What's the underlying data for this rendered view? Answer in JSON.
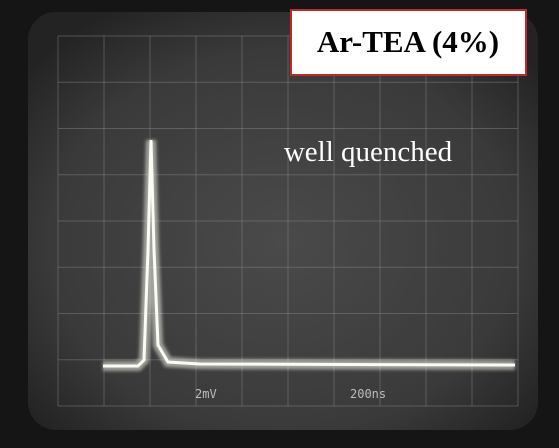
{
  "annotation": {
    "title": "Ar-TEA (4%)",
    "note": "well quenched"
  },
  "scope": {
    "volts_per_div": "2mV",
    "time_per_div": "200ns"
  }
}
